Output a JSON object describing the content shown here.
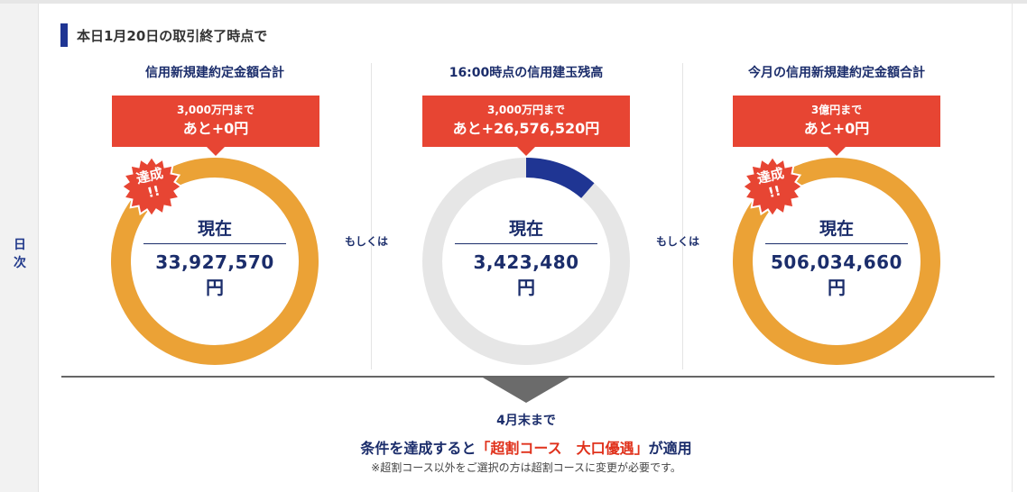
{
  "side_label": "日次",
  "header": {
    "title": "本日1月20日の取引終了時点で"
  },
  "columns": [
    {
      "title": "信用新規建約定金額合計",
      "callout_small": "3,000万円まで",
      "callout_big": "あと+0円",
      "center_label": "現在",
      "value": "33,927,570",
      "unit": "円",
      "progress": 1.0,
      "achieved": true,
      "badge_line1": "達成",
      "badge_line2": "!!",
      "ring_color": "#eba236"
    },
    {
      "title": "16:00時点の信用建玉残高",
      "callout_small": "3,000万円まで",
      "callout_big": "あと+26,576,520円",
      "center_label": "現在",
      "value": "3,423,480",
      "unit": "円",
      "progress": 0.114,
      "achieved": false,
      "ring_color": "#1f3593"
    },
    {
      "title": "今月の信用新規建約定金額合計",
      "callout_small": "3億円まで",
      "callout_big": "あと+0円",
      "center_label": "現在",
      "value": "506,034,660",
      "unit": "円",
      "progress": 1.0,
      "achieved": true,
      "badge_line1": "達成",
      "badge_line2": "!!",
      "ring_color": "#eba236"
    }
  ],
  "connector": "もしくは",
  "footer": {
    "deadline": "4月末まで",
    "line_a": "条件を達成すると",
    "line_highlight": "「超割コース　大口優遇」",
    "line_b": "が適用",
    "note": "※超割コース以外をご選択の方は超割コースに変更が必要です。"
  },
  "colors": {
    "accent_red": "#e74533",
    "navy": "#1b2d6b",
    "ring_track": "#e6e6e6"
  }
}
